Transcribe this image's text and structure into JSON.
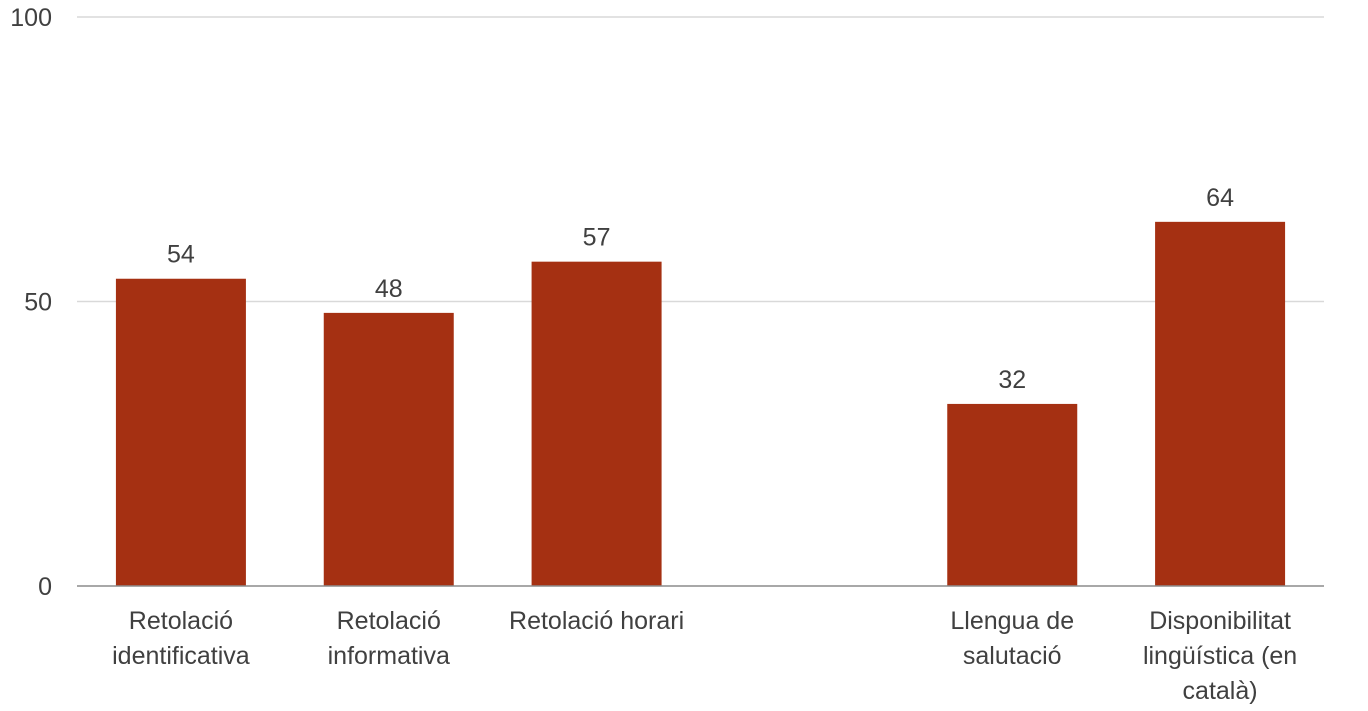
{
  "chart_data": {
    "type": "bar",
    "categories": [
      "Retolació identificativa",
      "Retolació informativa",
      "Retolació horari",
      "",
      "Llengua de salutació",
      "Disponibilitat lingüística (en català)"
    ],
    "category_label_lines": [
      [
        "Retolació",
        "identificativa"
      ],
      [
        "Retolació",
        "informativa"
      ],
      [
        "Retolació horari"
      ],
      [],
      [
        "Llengua de",
        "salutació"
      ],
      [
        "Disponibilitat",
        "lingüística (en",
        "català)"
      ]
    ],
    "values": [
      54,
      48,
      57,
      null,
      32,
      64
    ],
    "data_labels": [
      "54",
      "48",
      "57",
      "",
      "32",
      "64"
    ],
    "y_ticks": [
      "0",
      "50",
      "100"
    ],
    "ylim": [
      0,
      100
    ],
    "grid": true,
    "bar_color": "#A53012",
    "title": "",
    "xlabel": "",
    "ylabel": ""
  }
}
